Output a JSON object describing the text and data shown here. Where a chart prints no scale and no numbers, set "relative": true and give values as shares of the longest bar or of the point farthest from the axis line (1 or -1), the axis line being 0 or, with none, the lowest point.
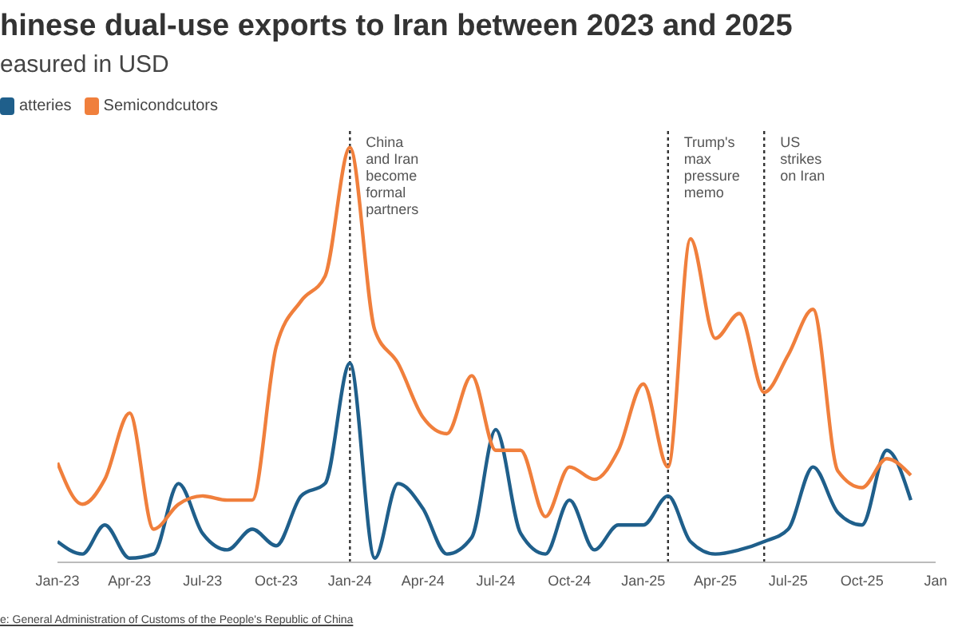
{
  "chart_data": {
    "type": "line",
    "title": "hinese dual-use exports to Iran between 2023 and 2025",
    "subtitle": "easured in USD",
    "relative": true,
    "x": [
      "2023-01",
      "2023-02",
      "2023-03",
      "2023-04",
      "2023-05",
      "2023-06",
      "2023-07",
      "2023-08",
      "2023-09",
      "2023-10",
      "2023-11",
      "2023-12",
      "2024-01",
      "2024-02",
      "2024-03",
      "2024-04",
      "2024-05",
      "2024-06",
      "2024-07",
      "2024-08",
      "2024-09",
      "2024-10",
      "2024-11",
      "2024-12",
      "2025-01",
      "2025-02",
      "2025-03",
      "2025-04",
      "2025-05",
      "2025-06",
      "2025-07",
      "2025-08",
      "2025-09",
      "2025-10",
      "2025-11",
      "2025-12"
    ],
    "series": [
      {
        "name": "atteries",
        "color": "#1f5f8b",
        "values": [
          0.05,
          0.02,
          0.09,
          0.01,
          0.02,
          0.19,
          0.07,
          0.03,
          0.08,
          0.04,
          0.16,
          0.19,
          0.48,
          0.01,
          0.19,
          0.13,
          0.02,
          0.06,
          0.32,
          0.07,
          0.02,
          0.15,
          0.03,
          0.09,
          0.09,
          0.16,
          0.05,
          0.02,
          0.03,
          0.05,
          0.08,
          0.23,
          0.12,
          0.09,
          0.27,
          0.15
        ]
      },
      {
        "name": "Semicondcutors",
        "color": "#f07f3c",
        "values": [
          0.24,
          0.14,
          0.2,
          0.36,
          0.08,
          0.14,
          0.16,
          0.15,
          0.15,
          0.52,
          0.63,
          0.69,
          1,
          0.56,
          0.48,
          0.35,
          0.31,
          0.45,
          0.27,
          0.27,
          0.11,
          0.23,
          0.2,
          0.27,
          0.43,
          0.23,
          0.78,
          0.54,
          0.6,
          0.41,
          0.5,
          0.61,
          0.22,
          0.18,
          0.25,
          0.21
        ]
      }
    ],
    "xlim": [
      "2023-01",
      "2026-01"
    ],
    "xticks": [
      {
        "value": "2023-01",
        "label": "Jan-23"
      },
      {
        "value": "2023-04",
        "label": "Apr-23"
      },
      {
        "value": "2023-07",
        "label": "Jul-23"
      },
      {
        "value": "2023-10",
        "label": "Oct-23"
      },
      {
        "value": "2024-01",
        "label": "Jan-24"
      },
      {
        "value": "2024-04",
        "label": "Apr-24"
      },
      {
        "value": "2024-07",
        "label": "Jul-24"
      },
      {
        "value": "2024-10",
        "label": "Oct-24"
      },
      {
        "value": "2025-01",
        "label": "Jan-25"
      },
      {
        "value": "2025-04",
        "label": "Apr-25"
      },
      {
        "value": "2025-07",
        "label": "Jul-25"
      },
      {
        "value": "2025-10",
        "label": "Oct-25"
      },
      {
        "value": "2026-01",
        "label": "Jan"
      }
    ],
    "ref_lines": [
      {
        "axis": "x",
        "value": "2024-01",
        "label": "China and Iran become formal partners",
        "color": "#333333",
        "line_style": "dotted"
      },
      {
        "axis": "x",
        "value": "2025-02",
        "label": "Trump's max pressure memo",
        "color": "#333333",
        "line_style": "dotted"
      },
      {
        "axis": "x",
        "value": "2025-06",
        "label": "US strikes on Iran",
        "color": "#333333",
        "line_style": "dotted"
      }
    ],
    "annotations": [
      "e: General Administration of Customs of the People's Republic of China"
    ],
    "legend": "top left",
    "marker": "none",
    "line_style": "solid"
  }
}
